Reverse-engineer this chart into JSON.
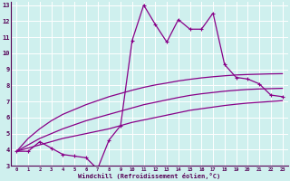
{
  "xlabel": "Windchill (Refroidissement éolien,°C)",
  "bg_color": "#cff0ee",
  "line_color": "#880088",
  "grid_color": "#aadddd",
  "xlim": [
    -0.5,
    23.5
  ],
  "ylim": [
    3,
    13.2
  ],
  "xticks": [
    0,
    1,
    2,
    3,
    4,
    5,
    6,
    7,
    8,
    9,
    10,
    11,
    12,
    13,
    14,
    15,
    16,
    17,
    18,
    19,
    20,
    21,
    22,
    23
  ],
  "yticks": [
    3,
    4,
    5,
    6,
    7,
    8,
    9,
    10,
    11,
    12,
    13
  ],
  "main_x": [
    0,
    1,
    2,
    3,
    4,
    5,
    6,
    7,
    8,
    9,
    10,
    11,
    12,
    13,
    14,
    15,
    16,
    17,
    18,
    19,
    20,
    21,
    22,
    23
  ],
  "main_y": [
    3.9,
    3.9,
    4.5,
    4.1,
    3.7,
    3.6,
    3.5,
    2.8,
    4.6,
    5.5,
    10.8,
    13.0,
    11.8,
    10.7,
    12.1,
    11.5,
    11.5,
    12.5,
    9.3,
    8.5,
    8.4,
    8.1,
    7.4,
    7.3
  ],
  "curve1_x": [
    0,
    1,
    2,
    3,
    4,
    5,
    6,
    7,
    8,
    9,
    10,
    11,
    12,
    13,
    14,
    15,
    16,
    17,
    18,
    19,
    20,
    21,
    22,
    23
  ],
  "curve1_y": [
    3.9,
    4.1,
    4.3,
    4.5,
    4.7,
    4.85,
    5.0,
    5.15,
    5.3,
    5.5,
    5.7,
    5.85,
    6.0,
    6.15,
    6.3,
    6.45,
    6.55,
    6.65,
    6.75,
    6.83,
    6.9,
    6.95,
    7.0,
    7.05
  ],
  "curve2_x": [
    0,
    1,
    2,
    3,
    4,
    5,
    6,
    7,
    8,
    9,
    10,
    11,
    12,
    13,
    14,
    15,
    16,
    17,
    18,
    19,
    20,
    21,
    22,
    23
  ],
  "curve2_y": [
    3.9,
    4.3,
    4.7,
    5.0,
    5.3,
    5.55,
    5.8,
    6.0,
    6.2,
    6.4,
    6.6,
    6.8,
    6.95,
    7.1,
    7.25,
    7.38,
    7.48,
    7.56,
    7.64,
    7.7,
    7.75,
    7.78,
    7.8,
    7.82
  ],
  "curve3_x": [
    0,
    1,
    2,
    3,
    4,
    5,
    6,
    7,
    8,
    9,
    10,
    11,
    12,
    13,
    14,
    15,
    16,
    17,
    18,
    19,
    20,
    21,
    22,
    23
  ],
  "curve3_y": [
    3.9,
    4.7,
    5.3,
    5.8,
    6.2,
    6.5,
    6.8,
    7.05,
    7.3,
    7.5,
    7.7,
    7.88,
    8.03,
    8.15,
    8.28,
    8.38,
    8.47,
    8.54,
    8.6,
    8.65,
    8.68,
    8.7,
    8.72,
    8.73
  ]
}
